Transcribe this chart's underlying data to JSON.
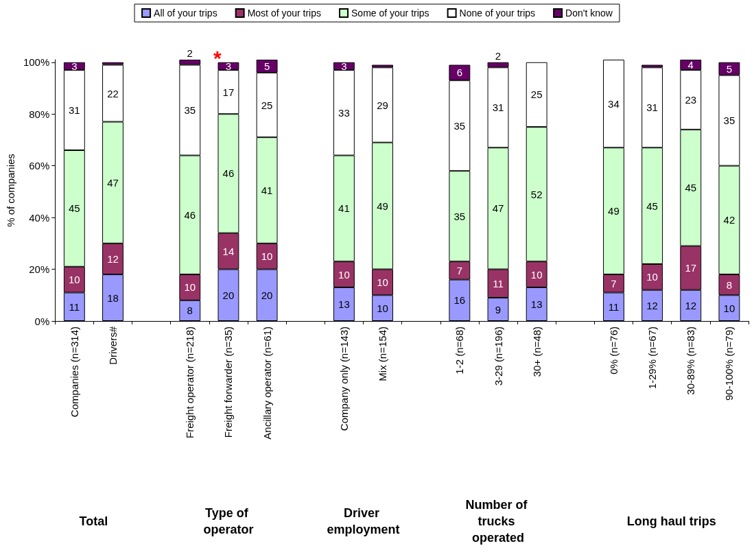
{
  "chart_data": {
    "type": "bar",
    "stacked": true,
    "ylabel": "% of companies",
    "categories": [
      "Companies (n=314)",
      "Drivers#",
      null,
      "Freight operator (n=218)",
      "Freight forwarder (n=35)",
      "Ancillary operator (n=61)",
      null,
      "Company only (n=143)",
      "Mix (n=154)",
      null,
      "1-2 (n=68)",
      "3-29 (n=196)",
      "30+ (n=48)",
      null,
      "0% (n=76)",
      "1-29% (n=67)",
      "30-89% (n=83)",
      "90-100% (n=79)"
    ],
    "series": [
      {
        "name": "All of your trips",
        "color": "#9999ff",
        "values": [
          11,
          18,
          null,
          8,
          20,
          20,
          null,
          13,
          10,
          null,
          16,
          9,
          13,
          null,
          11,
          12,
          12,
          10
        ],
        "value_labels": [
          "11",
          "18",
          null,
          "8",
          "20",
          "20",
          null,
          "13",
          "10",
          null,
          "16",
          "9",
          "13",
          null,
          "11",
          "12",
          "12",
          "10"
        ]
      },
      {
        "name": "Most of your trips",
        "color": "#993366",
        "values": [
          10,
          12,
          null,
          10,
          14,
          10,
          null,
          10,
          10,
          null,
          7,
          11,
          10,
          null,
          7,
          10,
          17,
          8
        ],
        "value_labels": [
          "10",
          "12",
          null,
          "10",
          "14",
          "10",
          null,
          "10",
          "10",
          null,
          "7",
          "11",
          "10",
          null,
          "7",
          "10",
          "17",
          "8"
        ]
      },
      {
        "name": "Some of your trips",
        "color": "#ccffcc",
        "values": [
          45,
          47,
          null,
          46,
          46,
          41,
          null,
          41,
          49,
          null,
          35,
          47,
          52,
          null,
          49,
          45,
          45,
          42
        ],
        "value_labels": [
          "45",
          "47",
          null,
          "46",
          "46",
          "41",
          null,
          "41",
          "49",
          null,
          "35",
          "47",
          "52",
          null,
          "49",
          "45",
          "45",
          "42"
        ]
      },
      {
        "name": "None of your trips",
        "color": "#ffffff",
        "values": [
          31,
          22,
          null,
          35,
          17,
          25,
          null,
          33,
          29,
          null,
          35,
          31,
          25,
          null,
          34,
          31,
          23,
          35
        ],
        "value_labels": [
          "31",
          "22",
          null,
          "35",
          "17",
          "25",
          null,
          "33",
          "29",
          null,
          "35",
          "31",
          "25",
          null,
          "34",
          "31",
          "23",
          "35"
        ]
      },
      {
        "name": "Don't know",
        "color": "#660066",
        "values": [
          3,
          1,
          null,
          2,
          3,
          5,
          null,
          3,
          1,
          null,
          6,
          2,
          null,
          null,
          null,
          1,
          4,
          5
        ],
        "value_labels": [
          "3",
          null,
          null,
          "2",
          "3",
          "5",
          null,
          "3",
          null,
          null,
          "6",
          "2",
          null,
          null,
          null,
          null,
          "4",
          "5"
        ]
      }
    ],
    "ylim": [
      0,
      101
    ],
    "yticks": [
      {
        "value": 0,
        "label": "0%"
      },
      {
        "value": 20,
        "label": "20%"
      },
      {
        "value": 40,
        "label": "40%"
      },
      {
        "value": 60,
        "label": "60%"
      },
      {
        "value": 80,
        "label": "80%"
      },
      {
        "value": 100,
        "label": "100%"
      }
    ],
    "grid": false,
    "legend": "top",
    "annotations": [
      {
        "text": "*",
        "x": "Freight forwarder (n=35)",
        "y": 100
      },
      "Total",
      "Type of operator",
      "Driver employment",
      "Number of trucks operated",
      "Long haul trips"
    ]
  }
}
